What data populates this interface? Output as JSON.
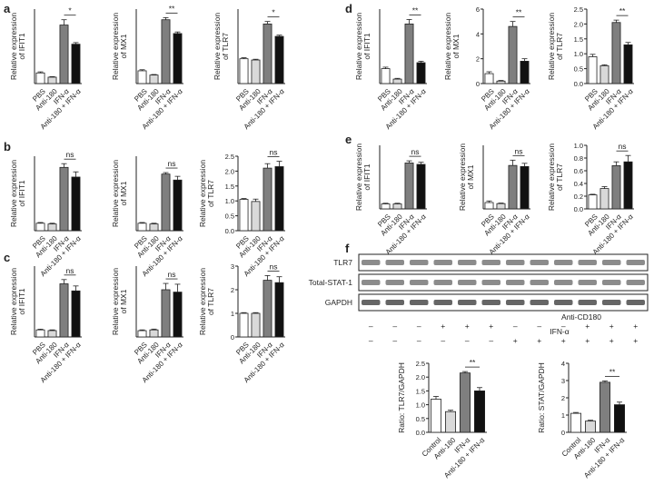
{
  "panel_labels": [
    "a",
    "b",
    "c",
    "d",
    "e",
    "f"
  ],
  "blot": {
    "rows": [
      "TLR7",
      "Total-STAT-1",
      "GAPDH"
    ],
    "treatments": [
      {
        "name": "Anti-CD180",
        "signs": [
          "–",
          "–",
          "–",
          "+",
          "+",
          "+",
          "–",
          "–",
          "–",
          "+",
          "+",
          "+"
        ]
      },
      {
        "name": "IFN-α",
        "signs": [
          "–",
          "–",
          "–",
          "–",
          "–",
          "–",
          "+",
          "+",
          "+",
          "+",
          "+",
          "+"
        ]
      }
    ]
  },
  "chart_data": [
    {
      "type": "bar",
      "ylabel": [
        "Relative expression",
        "of IFIT1"
      ],
      "categories": [
        "PBS",
        "Anti-180",
        "IFN-α",
        "Anti-180 + IFN-α"
      ],
      "values": [
        1.0,
        0.6,
        5.5,
        3.7
      ],
      "errors": [
        0.1,
        0.05,
        0.5,
        0.15
      ],
      "colors": [
        "#ffffff",
        "#d9d9d9",
        "#7f7f7f",
        "#111111"
      ],
      "ylim": [
        0,
        7
      ],
      "annotation": "*"
    },
    {
      "type": "bar",
      "ylabel": [
        "Relative expression",
        "of MX1"
      ],
      "categories": [
        "PBS",
        "Anti-180",
        "IFN-α",
        "Anti-180 + IFN-α"
      ],
      "values": [
        1.2,
        0.8,
        6.0,
        4.7
      ],
      "errors": [
        0.1,
        0.05,
        0.2,
        0.15
      ],
      "colors": [
        "#ffffff",
        "#d9d9d9",
        "#7f7f7f",
        "#111111"
      ],
      "ylim": [
        0,
        7
      ],
      "annotation": "**"
    },
    {
      "type": "bar",
      "ylabel": [
        "Relative expression",
        "of TLR7"
      ],
      "categories": [
        "PBS",
        "Anti-180",
        "IFN-α",
        "Anti-180 + IFN-α"
      ],
      "values": [
        1.0,
        0.95,
        2.4,
        1.9
      ],
      "errors": [
        0.04,
        0.03,
        0.1,
        0.05
      ],
      "colors": [
        "#ffffff",
        "#d9d9d9",
        "#7f7f7f",
        "#111111"
      ],
      "ylim": [
        0,
        3
      ],
      "annotation": "*"
    },
    {
      "type": "bar",
      "ylabel": [
        "Relative expression",
        "of IFIT1"
      ],
      "categories": [
        "PBS",
        "Anti-180",
        "IFN-α",
        "Anti-180 + IFN-α"
      ],
      "values": [
        1.0,
        0.9,
        8.5,
        7.2
      ],
      "errors": [
        0.1,
        0.1,
        0.5,
        0.7
      ],
      "colors": [
        "#ffffff",
        "#d9d9d9",
        "#7f7f7f",
        "#111111"
      ],
      "ylim": [
        0,
        10
      ],
      "annotation": "ns"
    },
    {
      "type": "bar",
      "ylabel": [
        "Relative expression",
        "of MX1"
      ],
      "categories": [
        "PBS",
        "Anti-180",
        "IFN-α",
        "Anti-180 + IFN-α"
      ],
      "values": [
        1.0,
        0.9,
        7.6,
        6.8
      ],
      "errors": [
        0.1,
        0.1,
        0.2,
        0.5
      ],
      "colors": [
        "#ffffff",
        "#d9d9d9",
        "#7f7f7f",
        "#111111"
      ],
      "ylim": [
        0,
        10
      ],
      "annotation": "ns"
    },
    {
      "type": "bar",
      "ylabel": [
        "Relative expression",
        "of TLR7"
      ],
      "categories": [
        "PBS",
        "Anti-180",
        "IFN-α",
        "Anti-180 + IFN-α"
      ],
      "values": [
        1.05,
        0.98,
        2.1,
        2.15
      ],
      "errors": [
        0.03,
        0.08,
        0.15,
        0.18
      ],
      "colors": [
        "#ffffff",
        "#d9d9d9",
        "#7f7f7f",
        "#111111"
      ],
      "ylim": [
        0,
        2.5
      ],
      "yticks": [
        {
          "value": 0,
          "label": "0.0"
        },
        0.5,
        {
          "value": 1,
          "label": "1.0"
        },
        1.5,
        {
          "value": 2,
          "label": "2.0"
        },
        2.5
      ],
      "annotation": "ns"
    },
    {
      "type": "bar",
      "ylabel": [
        "Relative expression",
        "of IFIT1"
      ],
      "categories": [
        "PBS",
        "Anti-180",
        "IFN-α",
        "Anti-180 + IFN-α"
      ],
      "values": [
        1.0,
        0.9,
        7.5,
        6.5
      ],
      "errors": [
        0.1,
        0.1,
        0.6,
        0.7
      ],
      "colors": [
        "#ffffff",
        "#d9d9d9",
        "#7f7f7f",
        "#111111"
      ],
      "ylim": [
        0,
        10
      ],
      "annotation": "ns"
    },
    {
      "type": "bar",
      "ylabel": [
        "Relative expression",
        "of MX1"
      ],
      "categories": [
        "PBS",
        "Anti-180",
        "IFN-α",
        "Anti-180 + IFN-α"
      ],
      "values": [
        0.8,
        0.9,
        6.0,
        5.7
      ],
      "errors": [
        0.1,
        0.1,
        0.8,
        1.0
      ],
      "colors": [
        "#ffffff",
        "#d9d9d9",
        "#7f7f7f",
        "#111111"
      ],
      "ylim": [
        0,
        9
      ],
      "annotation": "ns"
    },
    {
      "type": "bar",
      "ylabel": [
        "Relative expression",
        "of TLR7"
      ],
      "categories": [
        "PBS",
        "Anti-180",
        "IFN-α",
        "Anti-180 + IFN-α"
      ],
      "values": [
        1.0,
        1.0,
        2.4,
        2.3
      ],
      "errors": [
        0.03,
        0.03,
        0.2,
        0.25
      ],
      "colors": [
        "#ffffff",
        "#d9d9d9",
        "#7f7f7f",
        "#111111"
      ],
      "ylim": [
        0,
        3
      ],
      "yticks": [
        0,
        1,
        2,
        3
      ],
      "annotation": "ns"
    },
    {
      "type": "bar",
      "ylabel": [
        "Relative expression",
        "of IFIT1"
      ],
      "categories": [
        "PBS",
        "Anti-180",
        "IFN-α",
        "Anti-180 + IFN-α"
      ],
      "values": [
        1.0,
        0.3,
        4.0,
        1.4
      ],
      "errors": [
        0.1,
        0.05,
        0.3,
        0.1
      ],
      "colors": [
        "#ffffff",
        "#d9d9d9",
        "#7f7f7f",
        "#111111"
      ],
      "ylim": [
        0,
        5
      ],
      "annotation": "**"
    },
    {
      "type": "bar",
      "ylabel": [
        "Relative expression",
        "of MX1"
      ],
      "categories": [
        "PBS",
        "Anti-180",
        "IFN-α",
        "Anti-180 + IFN-α"
      ],
      "values": [
        0.8,
        0.2,
        4.6,
        1.8
      ],
      "errors": [
        0.15,
        0.05,
        0.4,
        0.2
      ],
      "colors": [
        "#ffffff",
        "#d9d9d9",
        "#7f7f7f",
        "#111111"
      ],
      "ylim": [
        0,
        6
      ],
      "yticks": [
        0,
        2,
        4,
        6
      ],
      "annotation": "**"
    },
    {
      "type": "bar",
      "ylabel": [
        "Relative expression",
        "of TLR7"
      ],
      "categories": [
        "PBS",
        "Anti-180",
        "IFN-α",
        "Anti-180 + IFN-α"
      ],
      "values": [
        0.9,
        0.6,
        2.05,
        1.3
      ],
      "errors": [
        0.08,
        0.03,
        0.08,
        0.08
      ],
      "colors": [
        "#ffffff",
        "#d9d9d9",
        "#7f7f7f",
        "#111111"
      ],
      "ylim": [
        0,
        2.5
      ],
      "yticks": [
        {
          "value": 0,
          "label": "0.0"
        },
        0.5,
        {
          "value": 1,
          "label": "1.0"
        },
        1.5,
        {
          "value": 2,
          "label": "2.0"
        },
        2.5
      ],
      "annotation": "**"
    },
    {
      "type": "bar",
      "ylabel": [
        "Relative expression",
        "of IFIT1"
      ],
      "categories": [
        "PBS",
        "Anti-180",
        "IFN-α",
        "Anti-180 + IFN-α"
      ],
      "values": [
        0.7,
        0.7,
        6.5,
        6.3
      ],
      "errors": [
        0.1,
        0.1,
        0.3,
        0.3
      ],
      "colors": [
        "#ffffff",
        "#d9d9d9",
        "#7f7f7f",
        "#111111"
      ],
      "ylim": [
        0,
        9
      ],
      "annotation": "ns"
    },
    {
      "type": "bar",
      "ylabel": [
        "Relative expression",
        "of MX1"
      ],
      "categories": [
        "PBS",
        "Anti-180",
        "IFN-α",
        "Anti-180 + IFN-α"
      ],
      "values": [
        0.6,
        0.5,
        4.1,
        4.0
      ],
      "errors": [
        0.15,
        0.05,
        0.5,
        0.3
      ],
      "colors": [
        "#ffffff",
        "#d9d9d9",
        "#7f7f7f",
        "#111111"
      ],
      "ylim": [
        0,
        6
      ],
      "annotation": "ns"
    },
    {
      "type": "bar",
      "ylabel": [
        "Relative expression",
        "of TLR7"
      ],
      "categories": [
        "PBS",
        "Anti-180",
        "IFN-α",
        "Anti-180 + IFN-α"
      ],
      "values": [
        0.22,
        0.32,
        0.68,
        0.74
      ],
      "errors": [
        0.01,
        0.03,
        0.06,
        0.1
      ],
      "colors": [
        "#ffffff",
        "#d9d9d9",
        "#7f7f7f",
        "#111111"
      ],
      "ylim": [
        0,
        1.0
      ],
      "yticks": [
        {
          "value": 0,
          "label": "0.0"
        },
        0.2,
        0.4,
        0.6,
        0.8,
        {
          "value": 1,
          "label": "1.0"
        }
      ],
      "annotation": "ns"
    },
    {
      "type": "bar",
      "ylabel": [
        "Ratio: TLR7/GAPDH"
      ],
      "categories": [
        "Control",
        "Anti-180",
        "IFN-α",
        "Anti-180 + IFN-α"
      ],
      "values": [
        1.2,
        0.75,
        2.15,
        1.5
      ],
      "errors": [
        0.1,
        0.05,
        0.05,
        0.12
      ],
      "colors": [
        "#ffffff",
        "#d9d9d9",
        "#7f7f7f",
        "#111111"
      ],
      "ylim": [
        0,
        2.5
      ],
      "yticks": [
        {
          "value": 0,
          "label": "0.0"
        },
        0.5,
        {
          "value": 1,
          "label": "1.0"
        },
        1.5,
        {
          "value": 2,
          "label": "2.0"
        },
        2.5
      ],
      "annotation": "**"
    },
    {
      "type": "bar",
      "ylabel": [
        "Ratio: STAT/GAPDH"
      ],
      "categories": [
        "Control",
        "Anti-180",
        "IFN-α",
        "Anti-180 + IFN-α"
      ],
      "values": [
        1.1,
        0.65,
        2.9,
        1.6
      ],
      "errors": [
        0.05,
        0.05,
        0.08,
        0.15
      ],
      "colors": [
        "#ffffff",
        "#d9d9d9",
        "#7f7f7f",
        "#111111"
      ],
      "ylim": [
        0,
        4
      ],
      "yticks": [
        0,
        1,
        2,
        3,
        4
      ],
      "annotation": "**"
    }
  ]
}
